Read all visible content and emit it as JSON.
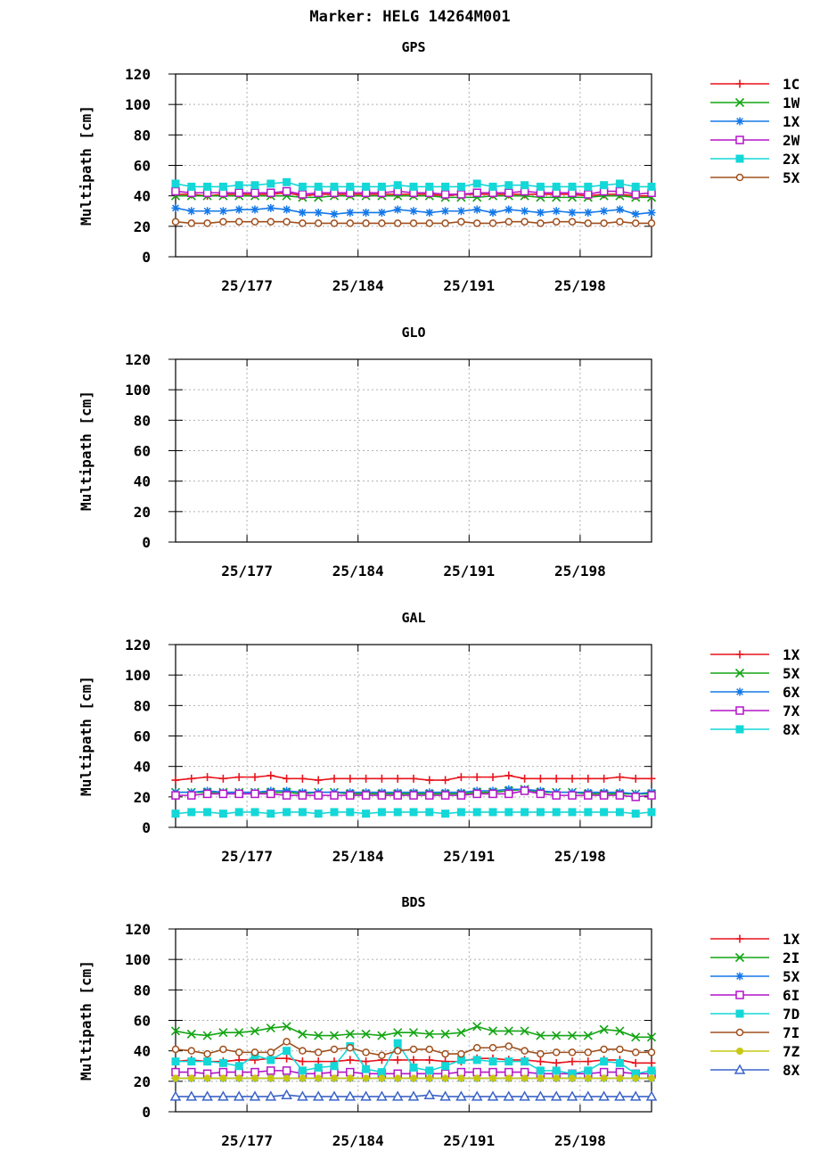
{
  "title": "Marker: HELG 14264M001",
  "colors": {
    "1C": "#e8141c",
    "1W": "#14a514",
    "1X": "#1478e8",
    "2W": "#b414c8",
    "2X": "#14d7d7",
    "5X": "#a0501e",
    "6X": "#1478e8",
    "7X": "#b414c8",
    "8X": "#14d7d7",
    "2I": "#14a514",
    "6I": "#b414c8",
    "7D": "#14d7d7",
    "7I": "#a0501e",
    "7Z": "#c8c814",
    "8Xb": "#3c64c8"
  },
  "chart_data": [
    {
      "type": "line",
      "title": "GPS",
      "ylabel": "Multipath [cm]",
      "ylim": [
        0,
        120
      ],
      "yticks": [
        "0",
        "20",
        "40",
        "60",
        "80",
        "100",
        "120"
      ],
      "xlim": [
        172.5,
        202.5
      ],
      "xticks": [
        {
          "v": 177,
          "label": "25/177"
        },
        {
          "v": 184,
          "label": "25/184"
        },
        {
          "v": 191,
          "label": "25/191"
        },
        {
          "v": 198,
          "label": "25/198"
        }
      ],
      "grid": true,
      "legend": "right",
      "x": [
        172.5,
        173.5,
        174.5,
        175.5,
        176.5,
        177.5,
        178.5,
        179.5,
        180.5,
        181.5,
        182.5,
        183.5,
        184.5,
        185.5,
        186.5,
        187.5,
        188.5,
        189.5,
        190.5,
        191.5,
        192.5,
        193.5,
        194.5,
        195.5,
        196.5,
        197.5,
        198.5,
        199.5,
        200.5,
        201.5,
        202.5
      ],
      "series": [
        {
          "name": "1C",
          "marker": "plus",
          "color": "#e8141c",
          "values": [
            41,
            41,
            40,
            41,
            41,
            41,
            41,
            42,
            40,
            41,
            41,
            41,
            41,
            41,
            41,
            41,
            41,
            40,
            41,
            41,
            41,
            41,
            41,
            41,
            41,
            41,
            40,
            41,
            41,
            40,
            40
          ]
        },
        {
          "name": "1W",
          "marker": "x",
          "color": "#14a514",
          "values": [
            40,
            40,
            40,
            40,
            40,
            40,
            40,
            40,
            39,
            39,
            40,
            40,
            40,
            40,
            40,
            40,
            40,
            39,
            39,
            39,
            40,
            40,
            40,
            39,
            39,
            39,
            39,
            40,
            40,
            39,
            39
          ]
        },
        {
          "name": "1X",
          "marker": "star",
          "color": "#1478e8",
          "values": [
            32,
            30,
            30,
            30,
            31,
            31,
            32,
            31,
            29,
            29,
            28,
            29,
            29,
            29,
            31,
            30,
            29,
            30,
            30,
            31,
            29,
            31,
            30,
            29,
            30,
            29,
            29,
            30,
            31,
            28,
            29
          ]
        },
        {
          "name": "2W",
          "marker": "sq-open",
          "color": "#b414c8",
          "values": [
            43,
            42,
            42,
            42,
            42,
            42,
            42,
            43,
            41,
            42,
            42,
            42,
            42,
            42,
            43,
            42,
            42,
            41,
            41,
            42,
            42,
            42,
            43,
            42,
            42,
            42,
            41,
            43,
            43,
            41,
            42
          ]
        },
        {
          "name": "2X",
          "marker": "sq-fill",
          "color": "#14d7d7",
          "values": [
            48,
            46,
            46,
            46,
            47,
            47,
            48,
            49,
            46,
            46,
            46,
            46,
            46,
            46,
            47,
            46,
            46,
            46,
            46,
            48,
            46,
            47,
            47,
            46,
            46,
            46,
            46,
            47,
            48,
            46,
            46
          ]
        },
        {
          "name": "5X",
          "marker": "circle",
          "color": "#a0501e",
          "values": [
            23,
            22,
            22,
            23,
            23,
            23,
            23,
            23,
            22,
            22,
            22,
            22,
            22,
            22,
            22,
            22,
            22,
            22,
            23,
            22,
            22,
            23,
            23,
            22,
            23,
            23,
            22,
            22,
            23,
            22,
            22
          ]
        }
      ]
    },
    {
      "type": "line",
      "title": "GLO",
      "ylabel": "Multipath [cm]",
      "ylim": [
        0,
        120
      ],
      "yticks": [
        "0",
        "20",
        "40",
        "60",
        "80",
        "100",
        "120"
      ],
      "xlim": [
        172.5,
        202.5
      ],
      "xticks": [
        {
          "v": 177,
          "label": "25/177"
        },
        {
          "v": 184,
          "label": "25/184"
        },
        {
          "v": 191,
          "label": "25/191"
        },
        {
          "v": 198,
          "label": "25/198"
        }
      ],
      "grid": true,
      "x": [],
      "series": []
    },
    {
      "type": "line",
      "title": "GAL",
      "ylabel": "Multipath [cm]",
      "ylim": [
        0,
        120
      ],
      "yticks": [
        "0",
        "20",
        "40",
        "60",
        "80",
        "100",
        "120"
      ],
      "xlim": [
        172.5,
        202.5
      ],
      "xticks": [
        {
          "v": 177,
          "label": "25/177"
        },
        {
          "v": 184,
          "label": "25/184"
        },
        {
          "v": 191,
          "label": "25/191"
        },
        {
          "v": 198,
          "label": "25/198"
        }
      ],
      "grid": true,
      "legend": "right",
      "x": [
        172.5,
        173.5,
        174.5,
        175.5,
        176.5,
        177.5,
        178.5,
        179.5,
        180.5,
        181.5,
        182.5,
        183.5,
        184.5,
        185.5,
        186.5,
        187.5,
        188.5,
        189.5,
        190.5,
        191.5,
        192.5,
        193.5,
        194.5,
        195.5,
        196.5,
        197.5,
        198.5,
        199.5,
        200.5,
        201.5,
        202.5
      ],
      "series": [
        {
          "name": "1X",
          "marker": "plus",
          "color": "#e8141c",
          "values": [
            31,
            32,
            33,
            32,
            33,
            33,
            34,
            32,
            32,
            31,
            32,
            32,
            32,
            32,
            32,
            32,
            31,
            31,
            33,
            33,
            33,
            34,
            32,
            32,
            32,
            32,
            32,
            32,
            33,
            32,
            32
          ]
        },
        {
          "name": "5X",
          "marker": "x",
          "color": "#14a514",
          "values": [
            23,
            23,
            23,
            23,
            23,
            23,
            23,
            23,
            22,
            23,
            23,
            22,
            22,
            22,
            22,
            22,
            22,
            22,
            22,
            23,
            23,
            24,
            25,
            23,
            23,
            23,
            22,
            22,
            22,
            22,
            22
          ]
        },
        {
          "name": "6X",
          "marker": "star",
          "color": "#1478e8",
          "values": [
            23,
            23,
            24,
            23,
            23,
            23,
            24,
            24,
            23,
            23,
            23,
            23,
            23,
            23,
            23,
            23,
            23,
            23,
            23,
            24,
            24,
            25,
            25,
            24,
            23,
            23,
            23,
            23,
            23,
            22,
            23
          ]
        },
        {
          "name": "7X",
          "marker": "sq-open",
          "color": "#b414c8",
          "values": [
            21,
            21,
            22,
            22,
            22,
            22,
            22,
            21,
            21,
            21,
            21,
            21,
            21,
            21,
            21,
            21,
            21,
            21,
            21,
            22,
            22,
            22,
            24,
            22,
            21,
            21,
            21,
            21,
            21,
            20,
            21
          ]
        },
        {
          "name": "8X",
          "marker": "sq-fill",
          "color": "#14d7d7",
          "values": [
            9,
            10,
            10,
            9,
            10,
            10,
            9,
            10,
            10,
            9,
            10,
            10,
            9,
            10,
            10,
            10,
            10,
            9,
            10,
            10,
            10,
            10,
            10,
            10,
            10,
            10,
            10,
            10,
            10,
            9,
            10
          ]
        }
      ]
    },
    {
      "type": "line",
      "title": "BDS",
      "ylabel": "Multipath [cm]",
      "ylim": [
        0,
        120
      ],
      "yticks": [
        "0",
        "20",
        "40",
        "60",
        "80",
        "100",
        "120"
      ],
      "xlim": [
        172.5,
        202.5
      ],
      "xticks": [
        {
          "v": 177,
          "label": "25/177"
        },
        {
          "v": 184,
          "label": "25/184"
        },
        {
          "v": 191,
          "label": "25/191"
        },
        {
          "v": 198,
          "label": "25/198"
        }
      ],
      "grid": true,
      "legend": "right",
      "x": [
        172.5,
        173.5,
        174.5,
        175.5,
        176.5,
        177.5,
        178.5,
        179.5,
        180.5,
        181.5,
        182.5,
        183.5,
        184.5,
        185.5,
        186.5,
        187.5,
        188.5,
        189.5,
        190.5,
        191.5,
        192.5,
        193.5,
        194.5,
        195.5,
        196.5,
        197.5,
        198.5,
        199.5,
        200.5,
        201.5,
        202.5
      ],
      "series": [
        {
          "name": "1X",
          "marker": "plus",
          "color": "#e8141c",
          "values": [
            33,
            34,
            33,
            33,
            34,
            34,
            35,
            35,
            33,
            33,
            33,
            34,
            33,
            34,
            34,
            34,
            34,
            33,
            33,
            35,
            35,
            34,
            34,
            33,
            32,
            33,
            33,
            34,
            34,
            32,
            32
          ]
        },
        {
          "name": "2I",
          "marker": "x",
          "color": "#14a514",
          "values": [
            53,
            51,
            50,
            52,
            52,
            53,
            55,
            56,
            51,
            50,
            50,
            51,
            51,
            50,
            52,
            52,
            51,
            51,
            52,
            56,
            53,
            53,
            53,
            50,
            50,
            50,
            50,
            54,
            53,
            49,
            49
          ]
        },
        {
          "name": "5X",
          "marker": "star",
          "color": "#1478e8",
          "values": [
            22,
            22,
            22,
            22,
            22,
            22,
            22,
            22,
            22,
            22,
            22,
            22,
            22,
            22,
            22,
            22,
            22,
            22,
            22,
            22,
            22,
            22,
            22,
            22,
            22,
            22,
            22,
            22,
            22,
            22,
            22
          ]
        },
        {
          "name": "6I",
          "marker": "sq-open",
          "color": "#b414c8",
          "values": [
            26,
            26,
            25,
            26,
            26,
            26,
            27,
            27,
            25,
            25,
            26,
            26,
            25,
            25,
            25,
            25,
            25,
            25,
            26,
            26,
            26,
            26,
            26,
            25,
            25,
            25,
            25,
            26,
            26,
            25,
            25
          ]
        },
        {
          "name": "7D",
          "marker": "sq-fill",
          "color": "#14d7d7",
          "values": [
            33,
            33,
            33,
            32,
            30,
            37,
            34,
            40,
            27,
            29,
            30,
            43,
            28,
            26,
            45,
            29,
            27,
            30,
            34,
            34,
            33,
            33,
            33,
            27,
            27,
            25,
            27,
            33,
            32,
            25,
            27
          ]
        },
        {
          "name": "7I",
          "marker": "circle",
          "color": "#a0501e",
          "values": [
            41,
            40,
            38,
            41,
            39,
            39,
            39,
            46,
            40,
            39,
            41,
            42,
            39,
            37,
            40,
            41,
            41,
            38,
            38,
            42,
            42,
            43,
            40,
            38,
            39,
            39,
            39,
            41,
            41,
            39,
            39
          ]
        },
        {
          "name": "7Z",
          "marker": "dot",
          "color": "#c8c814",
          "values": [
            22,
            22,
            22,
            22,
            22,
            22,
            22,
            22,
            22,
            22,
            22,
            22,
            22,
            22,
            22,
            22,
            22,
            22,
            22,
            22,
            22,
            22,
            22,
            22,
            22,
            22,
            22,
            22,
            22,
            22,
            22
          ]
        },
        {
          "name": "8X",
          "marker": "tri",
          "color": "#3c64c8",
          "values": [
            10,
            10,
            10,
            10,
            10,
            10,
            10,
            11,
            10,
            10,
            10,
            10,
            10,
            10,
            10,
            10,
            11,
            10,
            10,
            10,
            10,
            10,
            10,
            10,
            10,
            10,
            10,
            10,
            10,
            10,
            10
          ]
        }
      ]
    }
  ]
}
